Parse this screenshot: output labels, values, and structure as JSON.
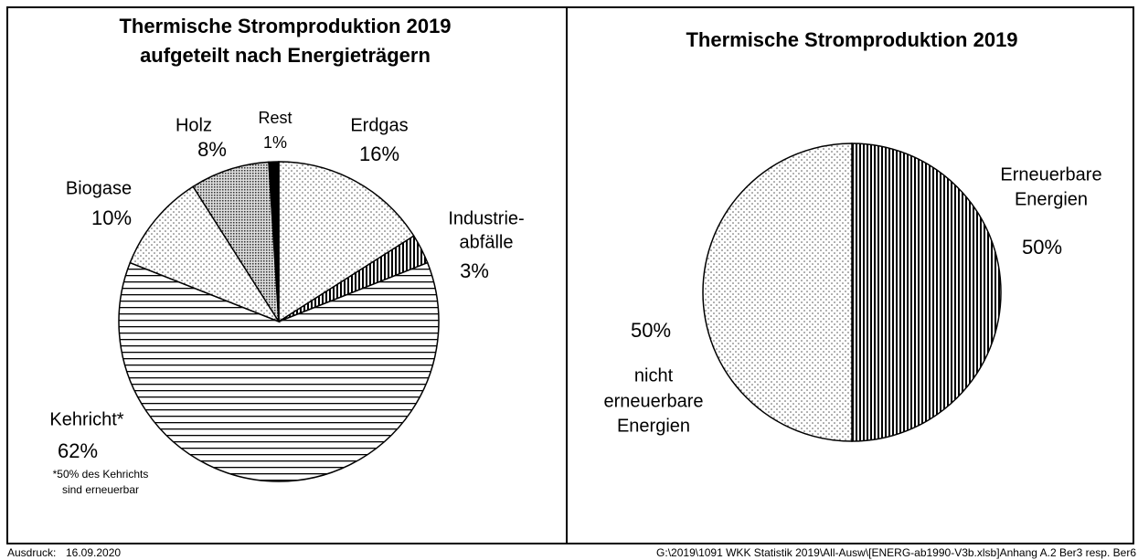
{
  "chart_data": [
    {
      "type": "pie",
      "title": [
        "Thermische Stromproduktion 2019",
        "aufgeteilt nach Energieträgern"
      ],
      "categories": [
        [
          "Erdgas"
        ],
        [
          "Industrie-",
          "abfälle"
        ],
        [
          "Kehricht*"
        ],
        [
          "Biogase"
        ],
        [
          "Holz"
        ],
        [
          "Rest"
        ]
      ],
      "values": [
        16,
        3,
        62,
        10,
        8,
        1
      ],
      "value_labels": [
        "16%",
        "3%",
        "62%",
        "10%",
        "8%",
        "1%"
      ],
      "patterns": [
        "dots",
        "vertical",
        "horizontal",
        "dots",
        "dense",
        "solid"
      ],
      "annotation": [
        "*50% des Kehrichts",
        "sind erneuerbar"
      ]
    },
    {
      "type": "pie",
      "title": [
        "Thermische Stromproduktion 2019"
      ],
      "categories": [
        [
          "Erneuerbare",
          "Energien"
        ],
        [
          "nicht",
          "erneuerbare",
          "Energien"
        ]
      ],
      "values": [
        50,
        50
      ],
      "value_labels": [
        "50%",
        "50%"
      ],
      "patterns": [
        "vertical",
        "dots"
      ]
    }
  ],
  "footer": {
    "label": "Ausdruck:",
    "date": "16.09.2020",
    "path": "G:\\2019\\1091 WKK Statistik 2019\\All-Ausw\\[ENERG-ab1990-V3b.xlsb]Anhang A.2    Ber3 resp. Ber6"
  }
}
